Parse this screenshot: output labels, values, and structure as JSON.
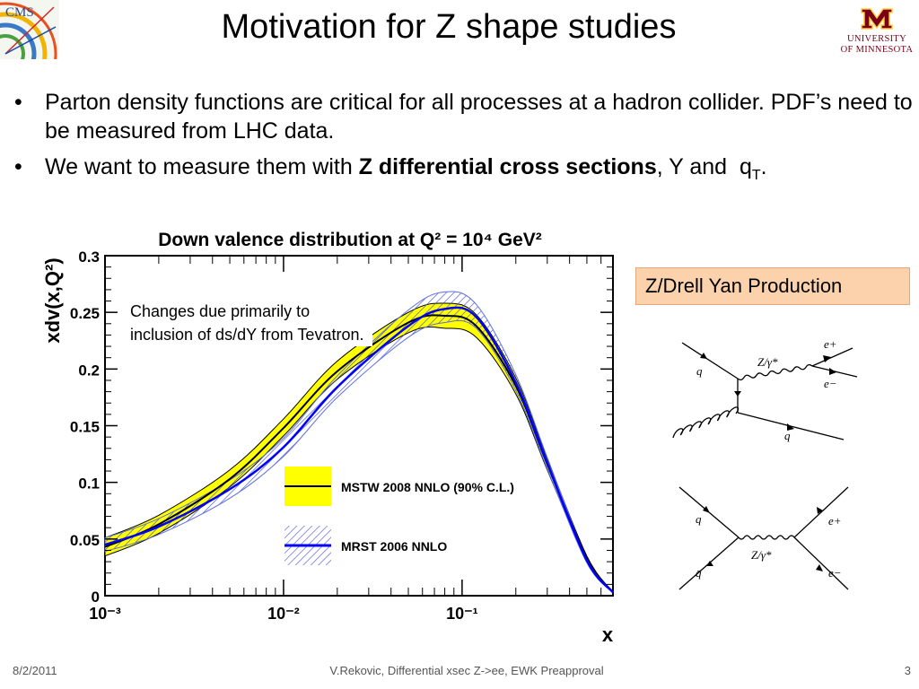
{
  "slide": {
    "title": "Motivation for Z shape studies",
    "logos": {
      "left": "CMS",
      "right_line1": "UNIVERSITY",
      "right_line2": "OF MINNESOTA"
    },
    "bullets": [
      {
        "text": "Parton density functions are critical for all processes at a hadron collider. PDF’s need to be measured from LHC data."
      },
      {
        "pre": "We want to measure them with ",
        "bold": "Z differential cross sections",
        "post": ", Y and  q",
        "sub": "T",
        "tail": "."
      }
    ],
    "annotation": "Changes due primarily to inclusion of ds/dY from Tevatron.",
    "process_label": "Z/Drell Yan Production",
    "feynman": {
      "top": {
        "labels": [
          "q",
          "Z/γ*",
          "e+",
          "e−",
          "q"
        ]
      },
      "bottom": {
        "labels": [
          "q",
          "q̄",
          "Z/γ*",
          "e+",
          "e−"
        ]
      }
    },
    "footer": {
      "date": "8/2/2011",
      "center": "V.Rekovic, Differential xsec Z->ee, EWK Preapproval",
      "page": "3"
    }
  },
  "chart_data": {
    "type": "area",
    "title": "Down valence distribution at Q² = 10⁴ GeV²",
    "xlabel": "x",
    "ylabel": "xdv(x,Q²)",
    "xscale": "log",
    "xlim": [
      0.001,
      0.7
    ],
    "ylim": [
      0,
      0.3
    ],
    "yticks": [
      "0",
      "0.05",
      "0.1",
      "0.15",
      "0.2",
      "0.25",
      "0.3"
    ],
    "xticks": [
      "10⁻³",
      "10⁻²",
      "10⁻¹"
    ],
    "legend": [
      {
        "name": "MSTW 2008 NNLO (90% C.L.)",
        "color": "#ffff00",
        "line": "#000000"
      },
      {
        "name": "MRST 2006 NNLO",
        "color": "#6070e0",
        "line": "#0000ff"
      }
    ],
    "series": [
      {
        "name": "MSTW 2008 NNLO (90% C.L.)",
        "x": [
          0.001,
          0.002,
          0.005,
          0.01,
          0.02,
          0.05,
          0.08,
          0.12,
          0.2,
          0.3,
          0.5,
          0.7
        ],
        "central": [
          0.043,
          0.063,
          0.103,
          0.148,
          0.198,
          0.241,
          0.247,
          0.238,
          0.185,
          0.116,
          0.033,
          0.003
        ],
        "lower": [
          0.035,
          0.055,
          0.096,
          0.141,
          0.191,
          0.232,
          0.236,
          0.228,
          0.178,
          0.111,
          0.031,
          0.003
        ],
        "upper": [
          0.051,
          0.071,
          0.111,
          0.156,
          0.207,
          0.25,
          0.258,
          0.248,
          0.192,
          0.121,
          0.035,
          0.003
        ]
      },
      {
        "name": "MRST 2006 NNLO",
        "x": [
          0.001,
          0.002,
          0.005,
          0.01,
          0.02,
          0.05,
          0.08,
          0.12,
          0.2,
          0.3,
          0.5,
          0.7
        ],
        "central": [
          0.045,
          0.061,
          0.094,
          0.131,
          0.184,
          0.238,
          0.253,
          0.246,
          0.188,
          0.117,
          0.031,
          0.003
        ],
        "lower": [
          0.039,
          0.054,
          0.086,
          0.123,
          0.175,
          0.228,
          0.241,
          0.236,
          0.181,
          0.112,
          0.029,
          0.003
        ],
        "upper": [
          0.051,
          0.068,
          0.102,
          0.139,
          0.194,
          0.252,
          0.268,
          0.257,
          0.195,
          0.122,
          0.033,
          0.003
        ]
      }
    ]
  }
}
